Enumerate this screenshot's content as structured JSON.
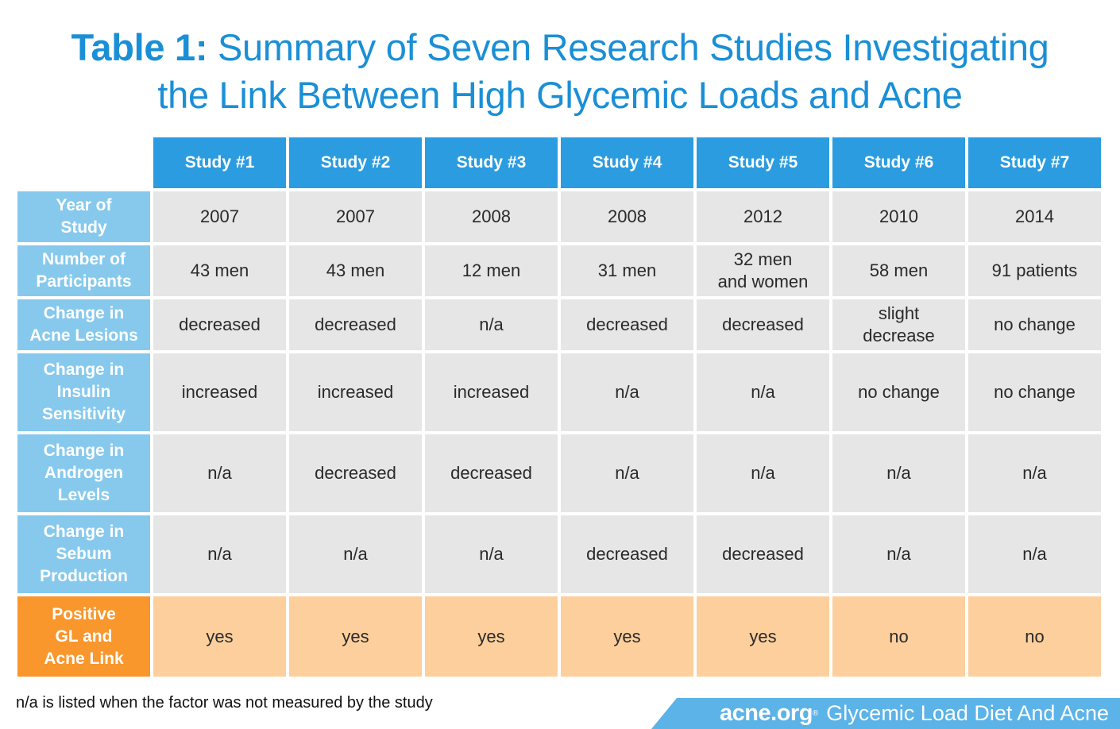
{
  "title": {
    "label": "Table 1:",
    "line1": "Summary of Seven Research Studies Investigating",
    "line2": "the Link Between High Glycemic Loads and Acne"
  },
  "table": {
    "columns": [
      "Study #1",
      "Study #2",
      "Study #3",
      "Study #4",
      "Study #5",
      "Study #6",
      "Study #7"
    ],
    "rows": [
      {
        "label": "Year of\nStudy",
        "cells": [
          "2007",
          "2007",
          "2008",
          "2008",
          "2012",
          "2010",
          "2014"
        ]
      },
      {
        "label": "Number of\nParticipants",
        "cells": [
          "43 men",
          "43 men",
          "12 men",
          "31 men",
          "32 men\nand women",
          "58 men",
          "91 patients"
        ]
      },
      {
        "label": "Change in\nAcne Lesions",
        "cells": [
          "decreased",
          "decreased",
          "n/a",
          "decreased",
          "decreased",
          "slight\ndecrease",
          "no change"
        ]
      },
      {
        "label": "Change in\nInsulin\nSensitivity",
        "cells": [
          "increased",
          "increased",
          "increased",
          "n/a",
          "n/a",
          "no change",
          "no change"
        ]
      },
      {
        "label": "Change in\nAndrogen\nLevels",
        "cells": [
          "n/a",
          "decreased",
          "decreased",
          "n/a",
          "n/a",
          "n/a",
          "n/a"
        ]
      },
      {
        "label": "Change in\nSebum\nProduction",
        "cells": [
          "n/a",
          "n/a",
          "n/a",
          "decreased",
          "decreased",
          "n/a",
          "n/a"
        ]
      },
      {
        "label": "Positive\nGL and\nAcne Link",
        "cells": [
          "yes",
          "yes",
          "yes",
          "yes",
          "yes",
          "no",
          "no"
        ]
      }
    ]
  },
  "footnote": "n/a is listed when the factor was not measured by the study",
  "brand": {
    "logo": "acne.org",
    "registered": "®",
    "text": "Glycemic Load Diet And Acne"
  },
  "colors": {
    "title": "#1a8fd6",
    "column_header": "#2c9ce0",
    "row_header": "#86c9ed",
    "cell": "#e6e6e6",
    "highlight_row_header": "#f9962c",
    "highlight_row_cells": "#fdcf9d",
    "brand_banner": "#5bb3e8"
  }
}
